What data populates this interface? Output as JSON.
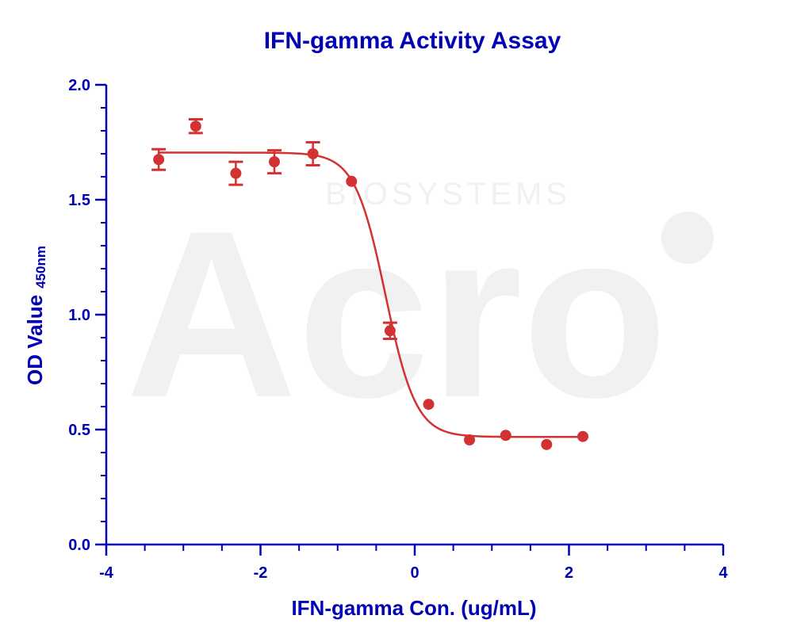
{
  "colors": {
    "axis": "#0000b4",
    "series": "#d23232",
    "watermark": "#f1f1f1"
  },
  "watermark": {
    "logo": "Acro",
    "tagline": "BIOSYSTEMS"
  },
  "chart_data": {
    "type": "scatter",
    "title": "IFN-gamma Activity Assay",
    "xlabel": "IFN-gamma Con. (ug/mL)",
    "ylabel": "OD Value",
    "ylabel_subscript": "450nm",
    "xlim": [
      -4,
      4
    ],
    "ylim": [
      0,
      2.0
    ],
    "x_ticks": [
      -4,
      -2,
      0,
      2,
      4
    ],
    "x_tick_labels": [
      "-4",
      "-2",
      "0",
      "2",
      "4"
    ],
    "y_ticks": [
      0,
      0.5,
      1.0,
      1.5,
      2.0
    ],
    "y_tick_labels": [
      "0.0",
      "0.5",
      "1.0",
      "1.5",
      "2.0"
    ],
    "grid": false,
    "series": [
      {
        "points": [
          {
            "x": -3.32,
            "y": 1.675,
            "err": 0.045
          },
          {
            "x": -2.84,
            "y": 1.82,
            "err": 0.03
          },
          {
            "x": -2.32,
            "y": 1.615,
            "err": 0.05
          },
          {
            "x": -1.82,
            "y": 1.665,
            "err": 0.05
          },
          {
            "x": -1.32,
            "y": 1.7,
            "err": 0.05
          },
          {
            "x": -0.82,
            "y": 1.58,
            "err": 0
          },
          {
            "x": -0.32,
            "y": 0.93,
            "err": 0.035
          },
          {
            "x": 0.18,
            "y": 0.61,
            "err": 0
          },
          {
            "x": 0.71,
            "y": 0.455,
            "err": 0
          },
          {
            "x": 1.18,
            "y": 0.475,
            "err": 0
          },
          {
            "x": 1.71,
            "y": 0.435,
            "err": 0
          },
          {
            "x": 2.18,
            "y": 0.47,
            "err": 0
          }
        ],
        "fit": {
          "model": "4PL",
          "top": 1.705,
          "bottom": 0.468,
          "log_ic50": -0.38,
          "hill_slope": -2.2,
          "x_range": [
            -3.32,
            2.18
          ]
        }
      }
    ]
  }
}
